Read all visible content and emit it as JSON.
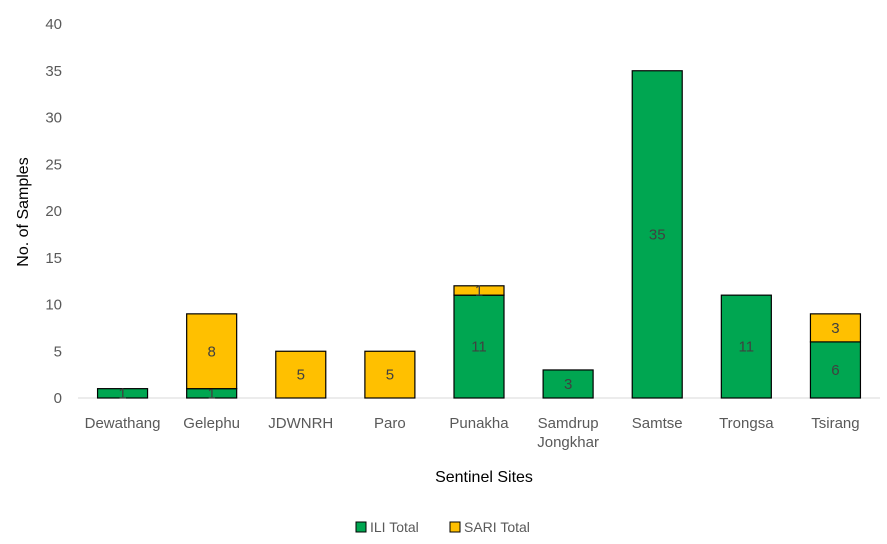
{
  "chart_data": {
    "type": "bar",
    "stacked": true,
    "categories": [
      [
        "Dewathang"
      ],
      [
        "Gelephu"
      ],
      [
        "JDWNRH"
      ],
      [
        "Paro"
      ],
      [
        "Punakha"
      ],
      [
        "Samdrup",
        "Jongkhar"
      ],
      [
        "Samtse"
      ],
      [
        "Trongsa"
      ],
      [
        "Tsirang"
      ]
    ],
    "series": [
      {
        "name": "ILI Total",
        "color": "#00a651",
        "values": [
          1,
          1,
          0,
          0,
          11,
          3,
          35,
          11,
          6
        ]
      },
      {
        "name": "SARI Total",
        "color": "#ffc000",
        "values": [
          0,
          8,
          5,
          5,
          1,
          0,
          0,
          0,
          3
        ]
      }
    ],
    "xlabel": "Sentinel Sites",
    "ylabel": "No. of Samples",
    "ylim": [
      0,
      40
    ],
    "yticks": [
      0,
      5,
      10,
      15,
      20,
      25,
      30,
      35,
      40
    ],
    "grid": false,
    "legend": "bottom-center"
  }
}
